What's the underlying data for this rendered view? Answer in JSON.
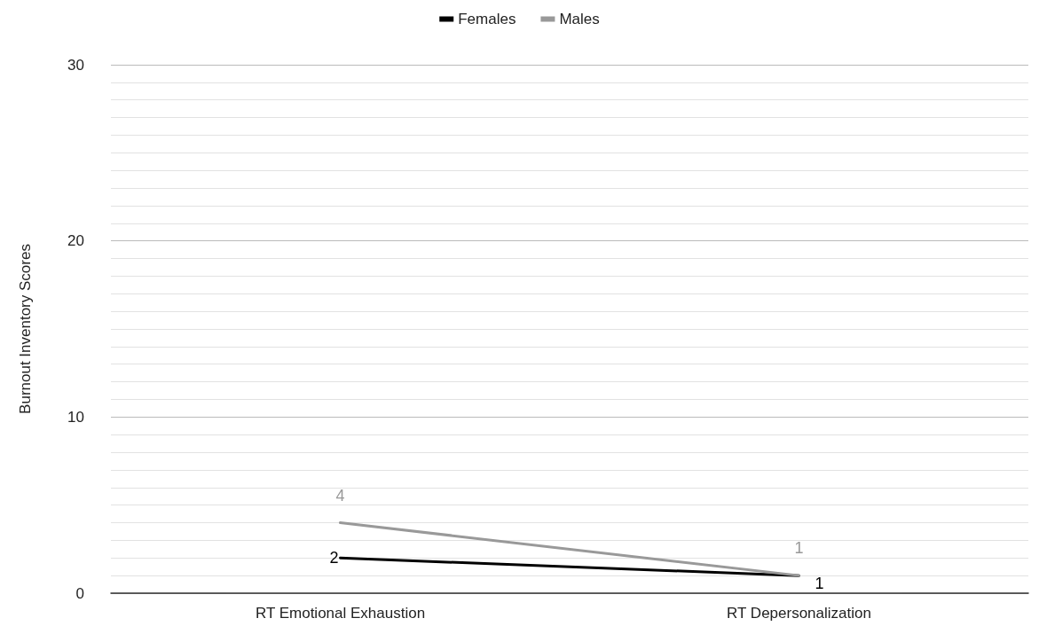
{
  "chart_data": {
    "type": "line",
    "ylabel": "Burnout Inventory Scores",
    "categories": [
      "RT Emotional Exhaustion",
      "RT Depersonalization"
    ],
    "series": [
      {
        "name": "Females",
        "color": "#000000",
        "values": [
          2,
          1
        ]
      },
      {
        "name": "Males",
        "color": "#999999",
        "values": [
          4,
          1
        ]
      }
    ],
    "ylim": [
      0,
      30
    ],
    "yticks": [
      0,
      10,
      20,
      30
    ],
    "grid": true,
    "legend": "top",
    "data_labels": true,
    "marker": "none",
    "line_style": "solid"
  }
}
